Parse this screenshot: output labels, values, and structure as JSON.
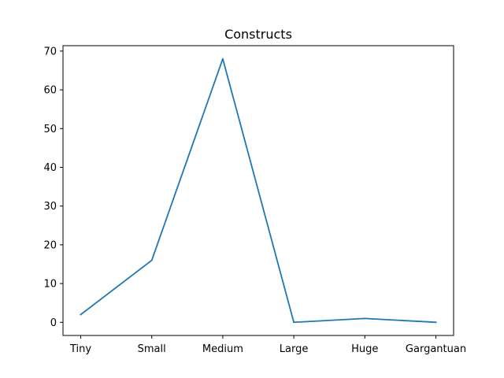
{
  "chart_data": {
    "type": "line",
    "title": "Constructs",
    "xlabel": "",
    "ylabel": "",
    "categories": [
      "Tiny",
      "Small",
      "Medium",
      "Large",
      "Huge",
      "Gargantuan"
    ],
    "series": [
      {
        "values": [
          2,
          16,
          68,
          0,
          1,
          0
        ],
        "color": "#1f77b4"
      }
    ],
    "ylim": [
      -3.4,
      71.4
    ],
    "yticks": [
      0,
      10,
      20,
      30,
      40,
      50,
      60,
      70
    ],
    "grid": false,
    "legend": "none"
  }
}
